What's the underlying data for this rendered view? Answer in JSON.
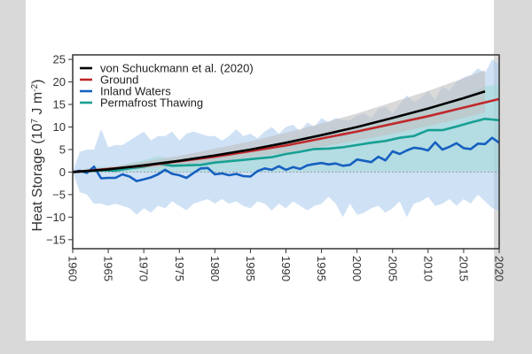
{
  "chart_data": {
    "type": "line",
    "title": "",
    "xlabel": "",
    "ylabel": "Heat Storage (10^7 J m^-2)",
    "ylabel_parts": {
      "main": "Heat Storage (10",
      "sup1": "7",
      "mid": " J m",
      "sup2": "-2",
      "end": ")"
    },
    "xlim": [
      1960,
      2020
    ],
    "ylim": [
      -17,
      26
    ],
    "xticks": [
      1960,
      1965,
      1970,
      1975,
      1980,
      1985,
      1990,
      1995,
      2000,
      2005,
      2010,
      2015,
      2020
    ],
    "yticks": [
      -15,
      -10,
      -5,
      0,
      5,
      10,
      15,
      20,
      25
    ],
    "legend_position": "top-left",
    "zero_line": true,
    "series": [
      {
        "name": "von Schuckmann et al. (2020)",
        "color": "#000000",
        "x": [
          1960,
          1965,
          1970,
          1975,
          1980,
          1985,
          1990,
          1995,
          2000,
          2005,
          2010,
          2015,
          2018
        ],
        "values": [
          0,
          0.6,
          1.5,
          2.5,
          3.7,
          5.0,
          6.5,
          8.2,
          10.0,
          12.0,
          14.1,
          16.4,
          17.9
        ],
        "band_lower": [
          0,
          0.2,
          0.8,
          1.5,
          2.3,
          3.2,
          4.3,
          5.6,
          7.0,
          8.5,
          10.2,
          12.0,
          13.2
        ],
        "band_upper": [
          0,
          1.0,
          2.3,
          3.6,
          5.2,
          6.8,
          8.7,
          10.8,
          13.0,
          15.5,
          18.0,
          20.8,
          22.6
        ],
        "band_color": "#bfbfbf"
      },
      {
        "name": "Ground",
        "color": "#c0282a",
        "x": [
          1960,
          1970,
          1980,
          1990,
          2000,
          2010,
          2020
        ],
        "values": [
          0,
          1.4,
          3.4,
          5.9,
          9.0,
          12.4,
          16.2
        ]
      },
      {
        "name": "Inland Waters",
        "color": "#1560c0",
        "x": [
          1960,
          1961,
          1962,
          1963,
          1964,
          1965,
          1966,
          1967,
          1968,
          1969,
          1970,
          1971,
          1972,
          1973,
          1974,
          1975,
          1976,
          1977,
          1978,
          1979,
          1980,
          1981,
          1982,
          1983,
          1984,
          1985,
          1986,
          1987,
          1988,
          1989,
          1990,
          1991,
          1992,
          1993,
          1994,
          1995,
          1996,
          1997,
          1998,
          1999,
          2000,
          2001,
          2002,
          2003,
          2004,
          2005,
          2006,
          2007,
          2008,
          2009,
          2010,
          2011,
          2012,
          2013,
          2014,
          2015,
          2016,
          2017,
          2018,
          2019,
          2020
        ],
        "values": [
          0,
          0.3,
          -0.2,
          1.2,
          -1.4,
          -1.3,
          -1.3,
          -0.5,
          -1.0,
          -2.0,
          -1.6,
          -1.2,
          -0.5,
          0.5,
          -0.4,
          -0.7,
          -1.3,
          -0.2,
          0.8,
          0.9,
          -0.5,
          -0.3,
          -0.7,
          -0.4,
          -0.9,
          -1.0,
          0.2,
          0.8,
          0.5,
          1.3,
          0.5,
          1.1,
          0.7,
          1.5,
          1.8,
          2.0,
          1.7,
          1.9,
          1.4,
          1.6,
          2.8,
          2.5,
          2.2,
          3.4,
          2.6,
          4.6,
          4.0,
          4.8,
          5.4,
          5.2,
          4.8,
          6.6,
          5.0,
          5.6,
          6.4,
          5.3,
          5.1,
          6.3,
          6.2,
          7.6,
          6.5
        ],
        "band_lower": [
          0,
          -4.5,
          -5,
          -7,
          -7,
          -7.5,
          -7,
          -7.5,
          -8,
          -9.5,
          -8,
          -9,
          -7.5,
          -8,
          -6.5,
          -7.5,
          -8.5,
          -7,
          -6.5,
          -6,
          -7,
          -6,
          -7,
          -6.5,
          -7.5,
          -8,
          -6.5,
          -7,
          -8.5,
          -7,
          -8,
          -6.5,
          -7.5,
          -8.5,
          -7.5,
          -7,
          -5.5,
          -7,
          -10,
          -7,
          -9.5,
          -9,
          -8,
          -7.5,
          -9,
          -8,
          -6.5,
          -10,
          -7,
          -6.5,
          -5.5,
          -7.5,
          -7,
          -6,
          -7.5,
          -6,
          -7,
          -5,
          -6.5,
          -8,
          -8.5
        ],
        "band_upper": [
          0,
          4.5,
          5,
          5,
          9.5,
          5.5,
          6,
          6,
          7,
          8,
          9,
          7,
          8,
          8,
          9,
          7,
          8.5,
          9,
          8.5,
          8,
          8,
          7,
          8,
          9.5,
          8,
          8.5,
          7.5,
          9,
          10,
          8.5,
          10,
          10.5,
          9,
          11,
          10,
          12,
          11,
          12,
          11.5,
          11.5,
          12.5,
          13,
          12,
          14,
          14.5,
          13,
          15,
          17,
          15.5,
          16.5,
          18,
          16,
          19,
          18,
          20,
          21,
          21.5,
          23,
          22,
          25,
          24
        ],
        "band_color": "#a8c8ec"
      },
      {
        "name": "Permafrost Thawing",
        "color": "#17a093",
        "x": [
          1960,
          1962,
          1964,
          1966,
          1968,
          1970,
          1972,
          1974,
          1976,
          1978,
          1980,
          1982,
          1984,
          1986,
          1988,
          1990,
          1992,
          1994,
          1996,
          1998,
          2000,
          2002,
          2004,
          2006,
          2008,
          2010,
          2012,
          2014,
          2016,
          2018,
          2020
        ],
        "values": [
          0,
          0.2,
          0.4,
          0.3,
          0.8,
          1.2,
          1.9,
          1.4,
          1.5,
          1.6,
          2.1,
          2.4,
          2.7,
          3.0,
          3.3,
          4.0,
          4.5,
          5.1,
          5.2,
          5.5,
          6.0,
          6.5,
          6.9,
          7.6,
          8.0,
          9.3,
          9.3,
          10.1,
          11.0,
          11.8,
          11.5
        ],
        "band_lower": [
          0,
          0,
          0,
          0,
          0,
          0,
          0,
          0,
          0,
          0,
          0,
          0,
          0,
          0,
          0,
          0,
          0,
          0,
          0,
          0,
          0,
          0,
          0,
          0,
          0,
          0,
          0,
          0,
          0,
          0,
          0
        ],
        "band_upper": [
          0,
          0.8,
          1.2,
          1.2,
          2.0,
          2.6,
          3.5,
          3.0,
          3.1,
          3.4,
          4.0,
          4.5,
          5.0,
          5.5,
          6.0,
          7.0,
          7.6,
          8.3,
          8.6,
          9.0,
          9.8,
          10.5,
          11.2,
          12.2,
          13.0,
          14.6,
          15.0,
          16.2,
          17.5,
          19.0,
          19.5
        ],
        "band_color": "#9fd8d4"
      }
    ]
  }
}
